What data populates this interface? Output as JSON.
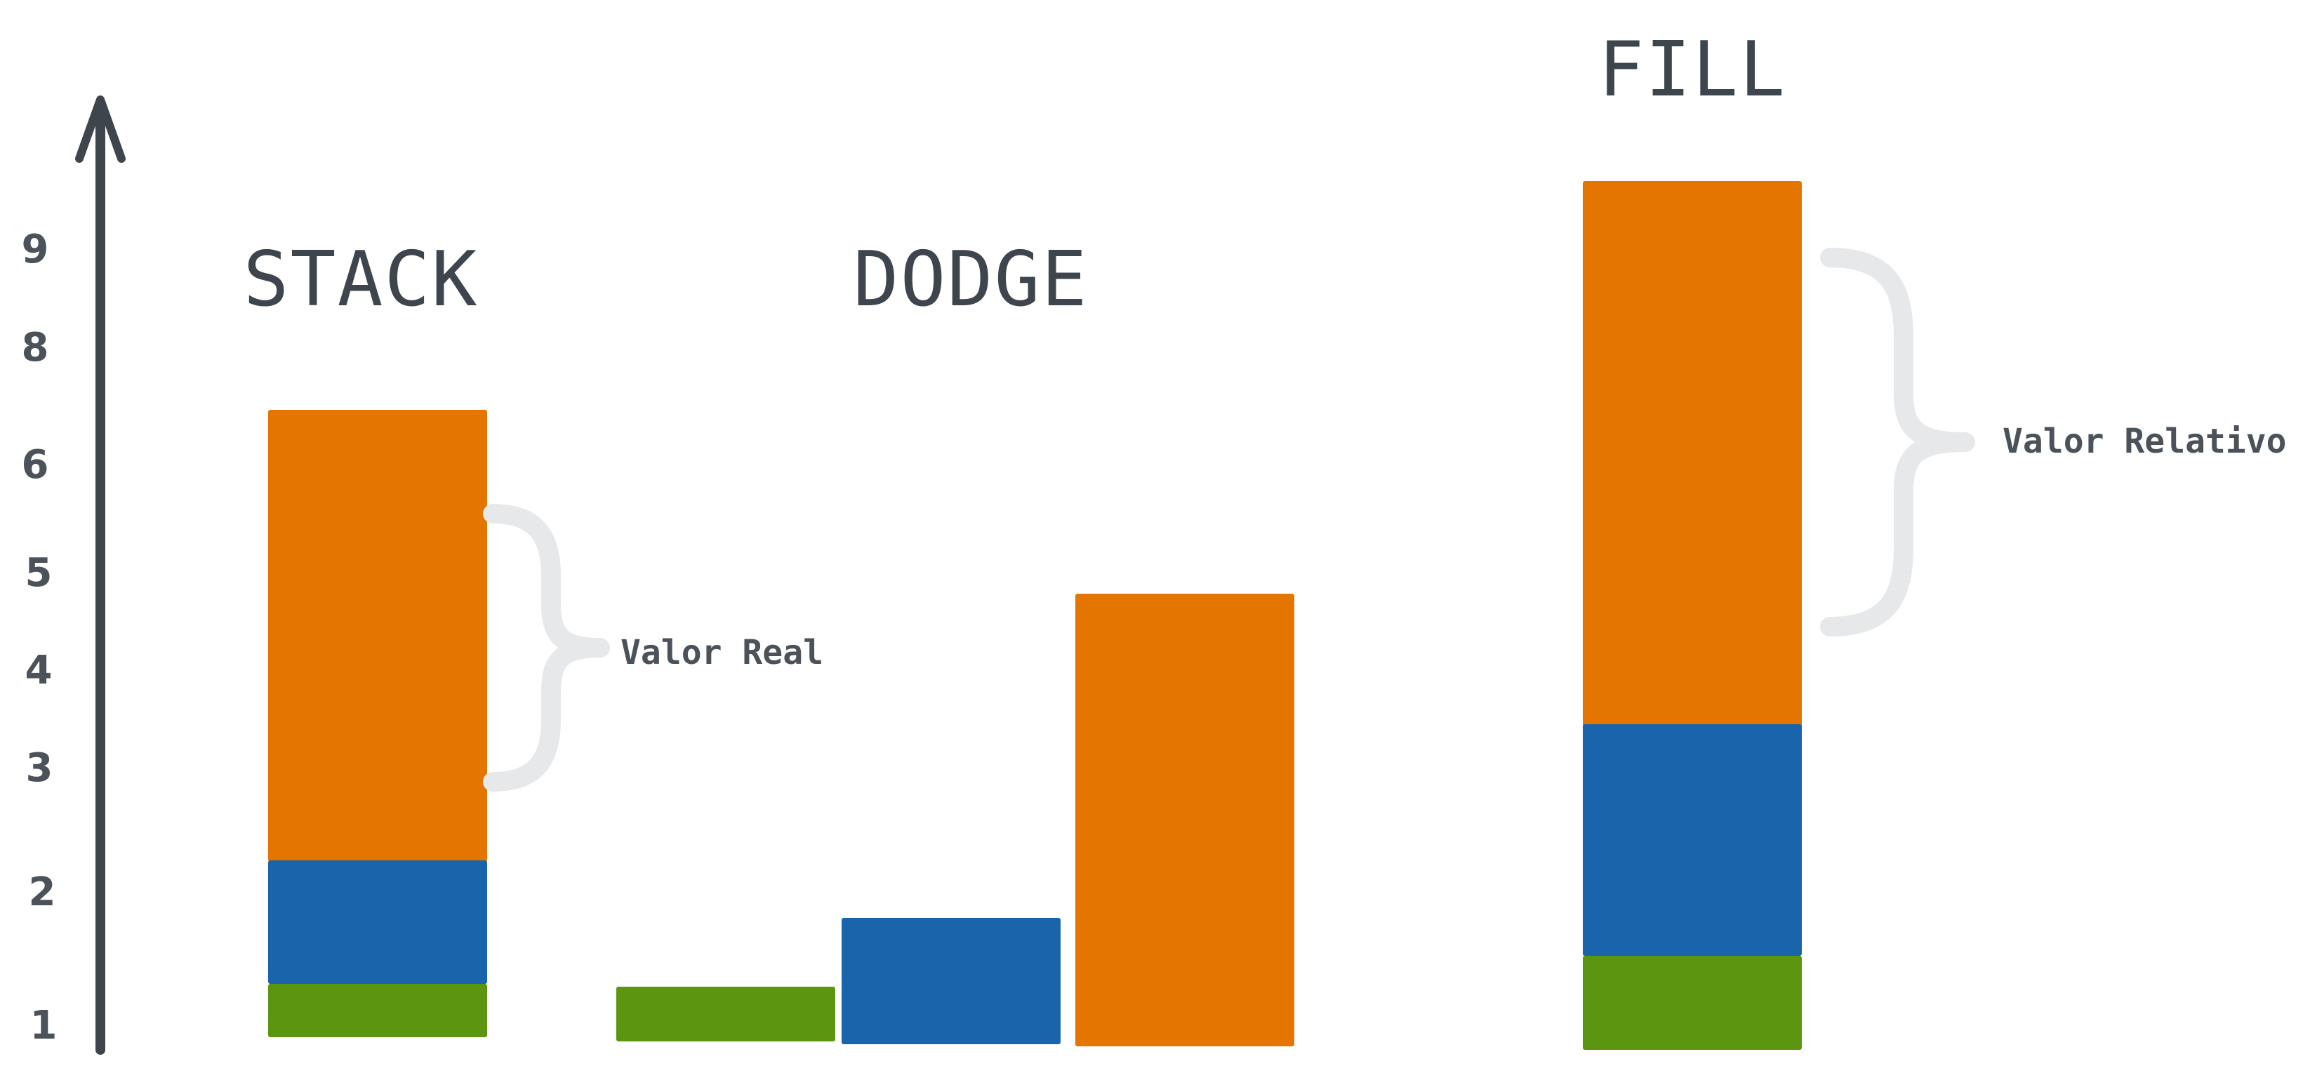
{
  "diagram": {
    "axis": {
      "ticks": [
        "1",
        "2",
        "3",
        "4",
        "5",
        "6",
        "8",
        "9"
      ]
    },
    "panels": {
      "stack": {
        "title": "STACK",
        "annotation": "Valor Real"
      },
      "dodge": {
        "title": "DODGE"
      },
      "fill": {
        "title": "FILL",
        "annotation": "Valor Relativo"
      }
    },
    "colors": {
      "green": "#5c9611",
      "blue": "#1964ab",
      "orange": "#e47600",
      "axis": "#3f454c",
      "brace": "#e7e8ea"
    }
  }
}
